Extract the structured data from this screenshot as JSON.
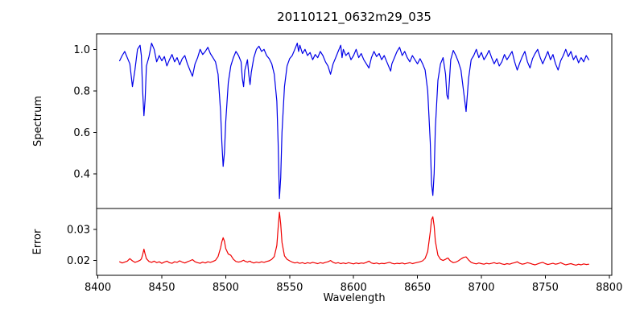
{
  "figure": {
    "background": "#ffffff",
    "frame_color": "#000000"
  },
  "chart_data": {
    "type": "line",
    "title": "20110121_0632m29_035",
    "xlabel": "Wavelength",
    "grid": false,
    "legend": false,
    "xlim": [
      8399,
      8802
    ],
    "xticks": [
      8400,
      8450,
      8500,
      8550,
      8600,
      8650,
      8700,
      8750,
      8800
    ],
    "xtick_labels": [
      "8400",
      "8450",
      "8500",
      "8550",
      "8600",
      "8650",
      "8700",
      "8750",
      "8800"
    ],
    "x": [
      8417,
      8419,
      8421,
      8423,
      8425,
      8427,
      8429,
      8431,
      8433,
      8434,
      8435,
      8436,
      8437,
      8438,
      8440,
      8442,
      8444,
      8446,
      8448,
      8450,
      8452,
      8454,
      8456,
      8458,
      8460,
      8462,
      8464,
      8466,
      8468,
      8470,
      8472,
      8474,
      8476,
      8478,
      8480,
      8482,
      8484,
      8486,
      8488,
      8490,
      8492,
      8494,
      8496,
      8497,
      8498,
      8499,
      8500,
      8502,
      8504,
      8506,
      8508,
      8510,
      8512,
      8513,
      8514,
      8515,
      8517,
      8518,
      8519,
      8520,
      8522,
      8524,
      8526,
      8528,
      8530,
      8532,
      8534,
      8536,
      8538,
      8540,
      8541,
      8542,
      8543,
      8544,
      8546,
      8548,
      8550,
      8552,
      8554,
      8556,
      8557,
      8558,
      8560,
      8562,
      8564,
      8566,
      8568,
      8570,
      8572,
      8574,
      8576,
      8578,
      8580,
      8582,
      8584,
      8586,
      8588,
      8590,
      8591,
      8592,
      8594,
      8596,
      8598,
      8600,
      8602,
      8604,
      8606,
      8608,
      8610,
      8612,
      8614,
      8616,
      8618,
      8620,
      8622,
      8624,
      8626,
      8628,
      8629,
      8630,
      8632,
      8634,
      8636,
      8638,
      8640,
      8642,
      8644,
      8646,
      8648,
      8650,
      8652,
      8654,
      8656,
      8658,
      8660,
      8661,
      8662,
      8663,
      8664,
      8666,
      8668,
      8670,
      8672,
      8673,
      8674,
      8675,
      8676,
      8678,
      8680,
      8682,
      8684,
      8686,
      8688,
      8690,
      8692,
      8694,
      8696,
      8698,
      8700,
      8702,
      8704,
      8706,
      8708,
      8710,
      8712,
      8714,
      8716,
      8718,
      8720,
      8722,
      8724,
      8726,
      8728,
      8730,
      8732,
      8734,
      8736,
      8738,
      8740,
      8742,
      8744,
      8746,
      8748,
      8750,
      8752,
      8754,
      8756,
      8758,
      8760,
      8762,
      8764,
      8766,
      8768,
      8770,
      8772,
      8774,
      8776,
      8778,
      8780,
      8782,
      8784
    ],
    "panels": [
      {
        "name": "spectrum",
        "ylabel": "Spectrum",
        "color": "#0000e8",
        "ylim": [
          0.232,
          1.075
        ],
        "yticks": [
          0.4,
          0.6,
          0.8,
          1.0
        ],
        "ytick_labels": [
          "0.4",
          "0.6",
          "0.8",
          "1.0"
        ],
        "absorption_lines": [
          8427,
          8436,
          8474,
          8498,
          8514,
          8519,
          8542,
          8582,
          8662,
          8674,
          8688
        ],
        "values": [
          0.945,
          0.97,
          0.99,
          0.96,
          0.93,
          0.82,
          0.9,
          1.0,
          1.02,
          0.97,
          0.8,
          0.68,
          0.76,
          0.92,
          0.965,
          1.03,
          1.0,
          0.94,
          0.97,
          0.945,
          0.965,
          0.92,
          0.95,
          0.975,
          0.94,
          0.96,
          0.925,
          0.955,
          0.97,
          0.93,
          0.9,
          0.87,
          0.93,
          0.96,
          1.0,
          0.975,
          0.99,
          1.01,
          0.98,
          0.96,
          0.94,
          0.88,
          0.7,
          0.55,
          0.435,
          0.5,
          0.65,
          0.84,
          0.92,
          0.96,
          0.99,
          0.97,
          0.94,
          0.86,
          0.82,
          0.9,
          0.95,
          0.88,
          0.83,
          0.89,
          0.96,
          1.0,
          1.015,
          0.99,
          1.0,
          0.97,
          0.955,
          0.93,
          0.88,
          0.75,
          0.55,
          0.28,
          0.38,
          0.6,
          0.82,
          0.92,
          0.955,
          0.97,
          1.0,
          1.03,
          0.99,
          1.02,
          0.98,
          1.0,
          0.97,
          0.985,
          0.95,
          0.975,
          0.96,
          0.99,
          0.97,
          0.94,
          0.92,
          0.88,
          0.93,
          0.96,
          0.99,
          1.02,
          0.96,
          1.0,
          0.97,
          0.985,
          0.95,
          0.97,
          1.0,
          0.96,
          0.98,
          0.95,
          0.93,
          0.91,
          0.96,
          0.99,
          0.965,
          0.98,
          0.95,
          0.97,
          0.94,
          0.91,
          0.895,
          0.93,
          0.96,
          0.99,
          1.01,
          0.97,
          0.99,
          0.96,
          0.94,
          0.97,
          0.95,
          0.93,
          0.955,
          0.93,
          0.9,
          0.8,
          0.55,
          0.35,
          0.295,
          0.4,
          0.62,
          0.85,
          0.93,
          0.96,
          0.88,
          0.78,
          0.76,
          0.85,
          0.95,
          0.995,
          0.97,
          0.94,
          0.9,
          0.8,
          0.7,
          0.86,
          0.95,
          0.97,
          1.0,
          0.96,
          0.985,
          0.95,
          0.97,
          0.995,
          0.96,
          0.93,
          0.955,
          0.92,
          0.94,
          0.975,
          0.95,
          0.97,
          0.99,
          0.94,
          0.9,
          0.935,
          0.965,
          0.99,
          0.94,
          0.91,
          0.955,
          0.98,
          1.0,
          0.96,
          0.93,
          0.96,
          0.99,
          0.95,
          0.975,
          0.93,
          0.9,
          0.945,
          0.97,
          1.0,
          0.965,
          0.99,
          0.95,
          0.97,
          0.935,
          0.96,
          0.94,
          0.97,
          0.95
        ]
      },
      {
        "name": "error",
        "ylabel": "Error",
        "color": "#f00000",
        "ylim": [
          0.0151,
          0.0368
        ],
        "yticks": [
          0.02,
          0.03
        ],
        "ytick_labels": [
          "0.02",
          "0.03"
        ],
        "values": [
          0.0195,
          0.0191,
          0.0194,
          0.0197,
          0.0205,
          0.0198,
          0.0193,
          0.0196,
          0.02,
          0.0204,
          0.0218,
          0.0236,
          0.022,
          0.0205,
          0.0196,
          0.0193,
          0.0197,
          0.0192,
          0.0195,
          0.019,
          0.0194,
          0.0197,
          0.0192,
          0.019,
          0.0195,
          0.0193,
          0.0198,
          0.0194,
          0.0191,
          0.0195,
          0.0198,
          0.0202,
          0.0195,
          0.0192,
          0.019,
          0.0194,
          0.0191,
          0.0195,
          0.0193,
          0.0196,
          0.02,
          0.0212,
          0.024,
          0.026,
          0.0273,
          0.0262,
          0.0238,
          0.022,
          0.0216,
          0.0203,
          0.0196,
          0.0194,
          0.0196,
          0.0198,
          0.02,
          0.0197,
          0.0194,
          0.0196,
          0.0197,
          0.0194,
          0.0191,
          0.0194,
          0.0192,
          0.0195,
          0.0193,
          0.0196,
          0.0198,
          0.0203,
          0.0212,
          0.0248,
          0.0305,
          0.0356,
          0.0318,
          0.0258,
          0.0214,
          0.0203,
          0.0198,
          0.0194,
          0.0191,
          0.0193,
          0.0191,
          0.019,
          0.0192,
          0.0189,
          0.0192,
          0.019,
          0.0193,
          0.0191,
          0.0189,
          0.0192,
          0.019,
          0.0193,
          0.0195,
          0.0199,
          0.0193,
          0.019,
          0.0192,
          0.0189,
          0.019,
          0.0191,
          0.0189,
          0.0192,
          0.019,
          0.0188,
          0.0191,
          0.0189,
          0.0191,
          0.019,
          0.0193,
          0.0197,
          0.0191,
          0.0189,
          0.0191,
          0.0188,
          0.019,
          0.0189,
          0.0191,
          0.0193,
          0.0192,
          0.019,
          0.0188,
          0.019,
          0.0189,
          0.0191,
          0.0188,
          0.019,
          0.0192,
          0.0189,
          0.0191,
          0.0193,
          0.0195,
          0.0198,
          0.0206,
          0.0228,
          0.0292,
          0.0332,
          0.0341,
          0.0312,
          0.0262,
          0.0216,
          0.0203,
          0.0199,
          0.0203,
          0.0206,
          0.0207,
          0.0201,
          0.0197,
          0.0192,
          0.0194,
          0.0198,
          0.0204,
          0.0209,
          0.0211,
          0.0201,
          0.0193,
          0.019,
          0.0188,
          0.0191,
          0.0189,
          0.0187,
          0.019,
          0.0188,
          0.019,
          0.0192,
          0.0189,
          0.0191,
          0.0188,
          0.0186,
          0.0189,
          0.0187,
          0.019,
          0.0192,
          0.0195,
          0.019,
          0.0187,
          0.0189,
          0.0192,
          0.019,
          0.0187,
          0.0185,
          0.0188,
          0.0191,
          0.0193,
          0.0189,
          0.0186,
          0.0188,
          0.019,
          0.0187,
          0.0189,
          0.0192,
          0.0188,
          0.0185,
          0.0187,
          0.0189,
          0.0186,
          0.0184,
          0.0187,
          0.0185,
          0.0188,
          0.0186,
          0.0187
        ]
      }
    ]
  }
}
